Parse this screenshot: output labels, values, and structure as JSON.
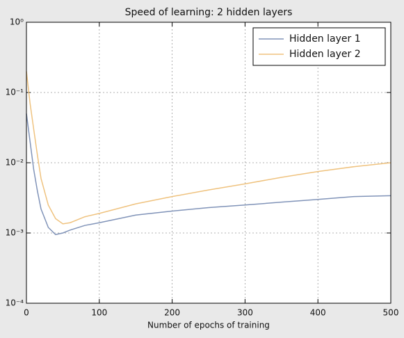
{
  "chart_data": {
    "type": "line",
    "title": "Speed of learning: 2 hidden layers",
    "x_label": "Number of epochs of training",
    "x": [
      0,
      5,
      10,
      15,
      20,
      30,
      40,
      50,
      60,
      80,
      100,
      150,
      200,
      250,
      300,
      350,
      400,
      450,
      500
    ],
    "series": [
      {
        "name": "Hidden layer 1",
        "color": "#8093b8",
        "values": [
          0.05,
          0.02,
          0.008,
          0.004,
          0.0022,
          0.0012,
          0.00095,
          0.001,
          0.0011,
          0.00128,
          0.0014,
          0.0018,
          0.00205,
          0.0023,
          0.0025,
          0.00275,
          0.003,
          0.0033,
          0.0034
        ]
      },
      {
        "name": "Hidden layer 2",
        "color": "#efc27e",
        "values": [
          0.2,
          0.07,
          0.03,
          0.013,
          0.006,
          0.0025,
          0.0016,
          0.00135,
          0.0014,
          0.0017,
          0.0019,
          0.0026,
          0.0033,
          0.0041,
          0.005,
          0.0062,
          0.0075,
          0.0088,
          0.01
        ]
      }
    ],
    "xlim": [
      0,
      500
    ],
    "xticks": [
      0,
      100,
      200,
      300,
      400,
      500
    ],
    "ylim": [
      0.0001,
      1
    ],
    "yscale": "log",
    "yticks": [
      {
        "value": 0.0001,
        "label": "10⁻⁴"
      },
      {
        "value": 0.001,
        "label": "10⁻³"
      },
      {
        "value": 0.01,
        "label": "10⁻²"
      },
      {
        "value": 0.1,
        "label": "10⁻¹"
      },
      {
        "value": 1,
        "label": "10⁰"
      }
    ],
    "grid": true,
    "legend": "upper-right"
  }
}
